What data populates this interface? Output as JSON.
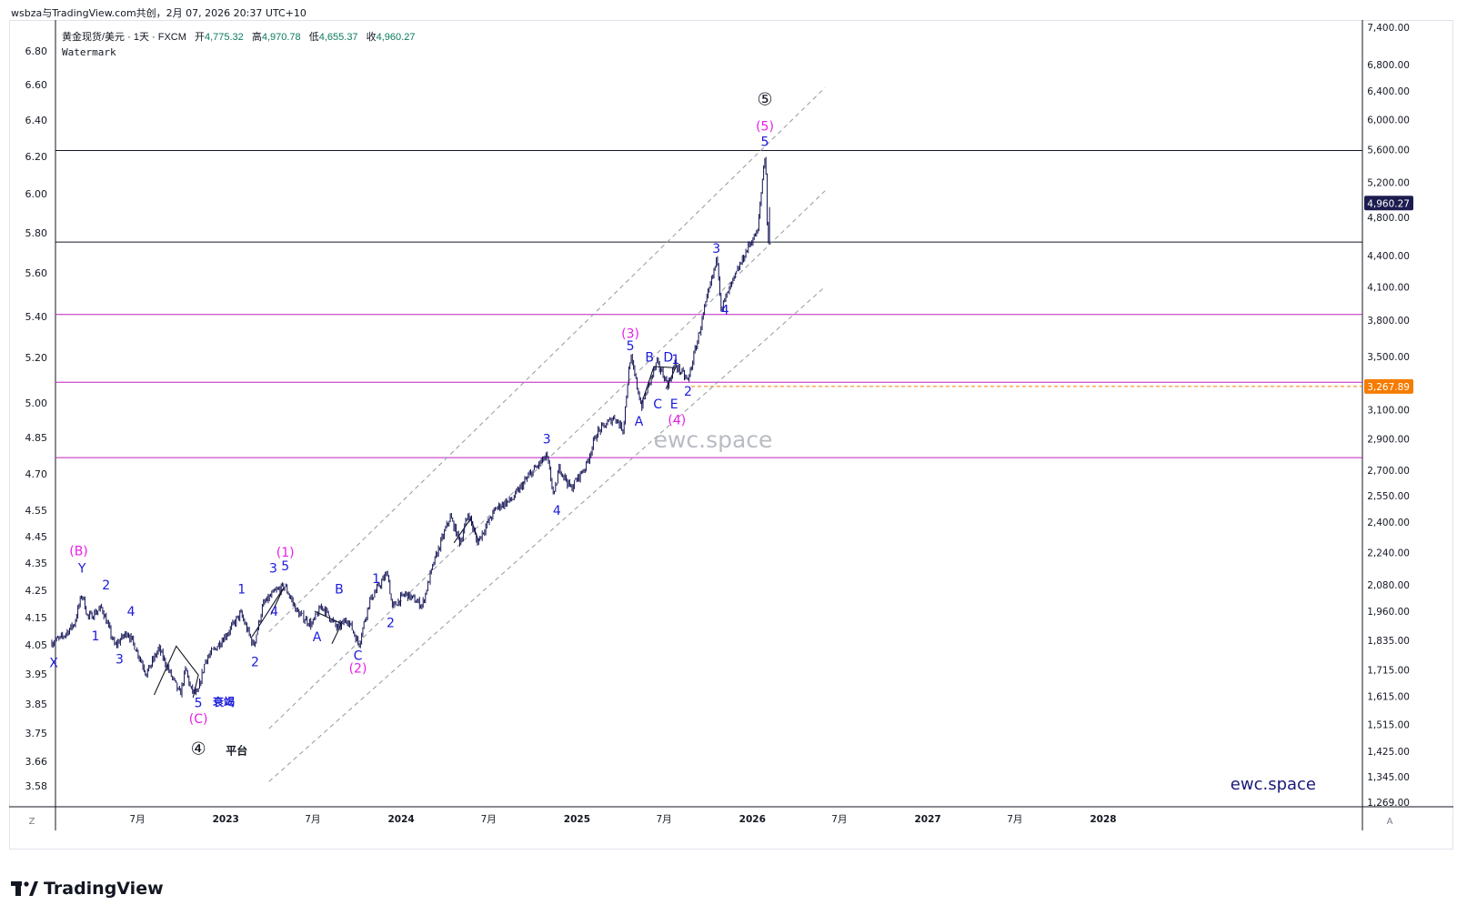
{
  "header": {
    "caption": "wsbza与TradingView.com共创，2月 07, 2026 20:37 UTC+10"
  },
  "legend": {
    "symbol": "黄金现货/美元 · 1天 · FXCM",
    "open_label": "开",
    "open": "4,775.32",
    "high_label": "高",
    "high": "4,970.78",
    "low_label": "低",
    "low": "4,655.37",
    "close_label": "收",
    "close": "4,960.27",
    "indicator": "Watermark"
  },
  "watermark": {
    "center": "ewc.space",
    "corner": "ewc.space"
  },
  "footer": {
    "brand": "TradingView"
  },
  "colors": {
    "wave_blue": "#1a1adb",
    "wave_magenta": "#e91ee9",
    "candle": "#131355",
    "hline_black": "#131722",
    "hline_magenta": "#c020c0",
    "price_tag_current": "#1c1c50",
    "price_tag_orange": "#f57c00"
  },
  "chart_data": {
    "type": "line",
    "left_axis": {
      "ticks": [
        "6.80",
        "6.60",
        "6.40",
        "6.20",
        "6.00",
        "5.80",
        "5.60",
        "5.40",
        "5.20",
        "5.00",
        "4.85",
        "4.70",
        "4.55",
        "4.45",
        "4.35",
        "4.25",
        "4.15",
        "4.05",
        "3.95",
        "3.85",
        "3.75",
        "3.66",
        "3.58"
      ]
    },
    "right_axis": {
      "scale": "log",
      "ylim": [
        1269,
        7400
      ],
      "ticks": [
        "7,400.00",
        "6,800.00",
        "6,400.00",
        "6,000.00",
        "5,600.00",
        "5,200.00",
        "4,800.00",
        "4,400.00",
        "4,100.00",
        "3,800.00",
        "3,500.00",
        "3,100.00",
        "2,900.00",
        "2,700.00",
        "2,550.00",
        "2,400.00",
        "2,240.00",
        "2,080.00",
        "1,960.00",
        "1,835.00",
        "1,715.00",
        "1,615.00",
        "1,515.00",
        "1,425.00",
        "1,345.00",
        "1,269.00"
      ]
    },
    "x_axis": {
      "ticks": [
        {
          "label": "7月",
          "x": "2022-07"
        },
        {
          "label": "2023",
          "x": "2023-01"
        },
        {
          "label": "7月",
          "x": "2023-07"
        },
        {
          "label": "2024",
          "x": "2024-01"
        },
        {
          "label": "7月",
          "x": "2024-07"
        },
        {
          "label": "2025",
          "x": "2025-01"
        },
        {
          "label": "7月",
          "x": "2025-07"
        },
        {
          "label": "2026",
          "x": "2026-01"
        },
        {
          "label": "7月",
          "x": "2026-07"
        },
        {
          "label": "2027",
          "x": "2027-01"
        },
        {
          "label": "7月",
          "x": "2027-07"
        },
        {
          "label": "2028",
          "x": "2028-01"
        }
      ]
    },
    "axis_corner_labels": {
      "left": "Z",
      "right": "A"
    },
    "series": [
      {
        "points": [
          [
            "2022-01-03",
            1825
          ],
          [
            "2022-01-25",
            1845
          ],
          [
            "2022-02-20",
            1905
          ],
          [
            "2022-03-08",
            2040
          ],
          [
            "2022-03-20",
            1930
          ],
          [
            "2022-04-18",
            1975
          ],
          [
            "2022-05-15",
            1810
          ],
          [
            "2022-06-10",
            1870
          ],
          [
            "2022-06-28",
            1800
          ],
          [
            "2022-07-20",
            1700
          ],
          [
            "2022-08-15",
            1800
          ],
          [
            "2022-09-05",
            1710
          ],
          [
            "2022-09-28",
            1620
          ],
          [
            "2022-10-10",
            1720
          ],
          [
            "2022-10-20",
            1640
          ],
          [
            "2022-11-03",
            1620
          ],
          [
            "2022-11-20",
            1755
          ],
          [
            "2022-12-10",
            1800
          ],
          [
            "2023-01-10",
            1880
          ],
          [
            "2023-02-01",
            1950
          ],
          [
            "2023-02-28",
            1810
          ],
          [
            "2023-03-20",
            1990
          ],
          [
            "2023-04-13",
            2048
          ],
          [
            "2023-05-04",
            2075
          ],
          [
            "2023-05-30",
            1955
          ],
          [
            "2023-06-29",
            1900
          ],
          [
            "2023-07-20",
            1985
          ],
          [
            "2023-08-21",
            1885
          ],
          [
            "2023-09-12",
            1925
          ],
          [
            "2023-10-05",
            1815
          ],
          [
            "2023-10-27",
            2005
          ],
          [
            "2023-12-04",
            2140
          ],
          [
            "2023-12-13",
            1975
          ],
          [
            "2024-01-10",
            2040
          ],
          [
            "2024-02-14",
            1985
          ],
          [
            "2024-03-08",
            2180
          ],
          [
            "2024-04-12",
            2430
          ],
          [
            "2024-05-03",
            2290
          ],
          [
            "2024-05-20",
            2450
          ],
          [
            "2024-06-07",
            2290
          ],
          [
            "2024-07-17",
            2480
          ],
          [
            "2024-08-20",
            2530
          ],
          [
            "2024-09-26",
            2680
          ],
          [
            "2024-10-30",
            2790
          ],
          [
            "2024-11-14",
            2540
          ],
          [
            "2024-11-25",
            2720
          ],
          [
            "2024-12-19",
            2590
          ],
          [
            "2025-01-20",
            2730
          ],
          [
            "2025-02-11",
            2940
          ],
          [
            "2025-03-20",
            3050
          ],
          [
            "2025-04-07",
            2960
          ],
          [
            "2025-04-22",
            3500
          ],
          [
            "2025-05-15",
            3120
          ],
          [
            "2025-06-16",
            3450
          ],
          [
            "2025-07-10",
            3280
          ],
          [
            "2025-07-23",
            3440
          ],
          [
            "2025-08-20",
            3310
          ],
          [
            "2025-09-10",
            3650
          ],
          [
            "2025-10-20",
            4380
          ],
          [
            "2025-10-28",
            3900
          ],
          [
            "2025-12-01",
            4250
          ],
          [
            "2025-12-26",
            4520
          ],
          [
            "2026-01-12",
            4650
          ],
          [
            "2026-01-28",
            5600
          ],
          [
            "2026-02-02",
            4400
          ],
          [
            "2026-02-06",
            4960.27
          ]
        ]
      }
    ],
    "horizontal_lines": [
      {
        "price": 5590,
        "color": "black"
      },
      {
        "price": 4540,
        "color": "black"
      },
      {
        "price": 3850,
        "color": "magenta"
      },
      {
        "price": 3300,
        "color": "magenta"
      },
      {
        "price": 2780,
        "color": "magenta"
      },
      {
        "price": 3267.89,
        "color": "orange",
        "style": "dashed"
      }
    ],
    "price_tags": [
      {
        "price": 4960.27,
        "label": "4,960.27",
        "color": "current"
      },
      {
        "price": 3267.89,
        "label": "3,267.89",
        "color": "orange"
      }
    ],
    "channel_lines": [
      {
        "from": [
          "2023-04-01",
          1870
        ],
        "to": [
          "2026-06-01",
          6450
        ]
      },
      {
        "from": [
          "2023-04-01",
          1500
        ],
        "to": [
          "2026-06-01",
          5100
        ]
      },
      {
        "from": [
          "2023-04-01",
          1330
        ],
        "to": [
          "2026-06-01",
          4100
        ]
      }
    ],
    "wave_labels": [
      {
        "text": "X",
        "x": "2022-01-08",
        "price": 1725,
        "color": "blue"
      },
      {
        "text": "(B)",
        "x": "2022-03-01",
        "price": 2225,
        "color": "magenta"
      },
      {
        "text": "Y",
        "x": "2022-03-08",
        "price": 2140,
        "color": "blue"
      },
      {
        "text": "1",
        "x": "2022-04-05",
        "price": 1835,
        "color": "blue"
      },
      {
        "text": "2",
        "x": "2022-04-27",
        "price": 2060,
        "color": "blue"
      },
      {
        "text": "3",
        "x": "2022-05-25",
        "price": 1740,
        "color": "blue"
      },
      {
        "text": "4",
        "x": "2022-06-18",
        "price": 1940,
        "color": "blue"
      },
      {
        "text": "5",
        "x": "2022-11-05",
        "price": 1575,
        "color": "blue"
      },
      {
        "text": "衰竭",
        "x": "2022-12-05",
        "price": 1580,
        "color": "blue"
      },
      {
        "text": "(C)",
        "x": "2022-11-05",
        "price": 1520,
        "color": "magenta"
      },
      {
        "text": "④",
        "x": "2022-11-05",
        "price": 1415,
        "color": "black"
      },
      {
        "text": "平台",
        "x": "2023-01-01",
        "price": 1415,
        "color": "black"
      },
      {
        "text": "1",
        "x": "2023-02-03",
        "price": 2040,
        "color": "blue"
      },
      {
        "text": "2",
        "x": "2023-03-03",
        "price": 1730,
        "color": "blue"
      },
      {
        "text": "3",
        "x": "2023-04-10",
        "price": 2140,
        "color": "blue"
      },
      {
        "text": "(1)",
        "x": "2023-05-05",
        "price": 2220,
        "color": "magenta"
      },
      {
        "text": "5",
        "x": "2023-05-05",
        "price": 2150,
        "color": "blue"
      },
      {
        "text": "4",
        "x": "2023-04-12",
        "price": 1940,
        "color": "blue"
      },
      {
        "text": "A",
        "x": "2023-07-10",
        "price": 1830,
        "color": "blue"
      },
      {
        "text": "B",
        "x": "2023-08-25",
        "price": 2040,
        "color": "blue"
      },
      {
        "text": "C",
        "x": "2023-10-03",
        "price": 1755,
        "color": "blue"
      },
      {
        "text": "(2)",
        "x": "2023-10-03",
        "price": 1705,
        "color": "magenta"
      },
      {
        "text": "1",
        "x": "2023-11-10",
        "price": 2090,
        "color": "blue"
      },
      {
        "text": "2",
        "x": "2023-12-10",
        "price": 1890,
        "color": "blue"
      },
      {
        "text": "3",
        "x": "2024-10-30",
        "price": 2870,
        "color": "blue"
      },
      {
        "text": "4",
        "x": "2024-11-20",
        "price": 2440,
        "color": "blue"
      },
      {
        "text": "(3)",
        "x": "2025-04-22",
        "price": 3650,
        "color": "magenta"
      },
      {
        "text": "5",
        "x": "2025-04-22",
        "price": 3550,
        "color": "blue"
      },
      {
        "text": "A",
        "x": "2025-05-10",
        "price": 2990,
        "color": "blue"
      },
      {
        "text": "B",
        "x": "2025-06-01",
        "price": 3460,
        "color": "blue"
      },
      {
        "text": "C",
        "x": "2025-06-18",
        "price": 3110,
        "color": "blue"
      },
      {
        "text": "D",
        "x": "2025-07-10",
        "price": 3460,
        "color": "blue"
      },
      {
        "text": "1",
        "x": "2025-07-25",
        "price": 3440,
        "color": "blue"
      },
      {
        "text": "E",
        "x": "2025-07-22",
        "price": 3110,
        "color": "blue"
      },
      {
        "text": "(4)",
        "x": "2025-07-28",
        "price": 3000,
        "color": "magenta"
      },
      {
        "text": "2",
        "x": "2025-08-20",
        "price": 3200,
        "color": "blue"
      },
      {
        "text": "3",
        "x": "2025-10-18",
        "price": 4430,
        "color": "blue"
      },
      {
        "text": "4",
        "x": "2025-11-05",
        "price": 3850,
        "color": "blue"
      },
      {
        "text": "⑤",
        "x": "2026-01-27",
        "price": 6200,
        "color": "black"
      },
      {
        "text": "(5)",
        "x": "2026-01-27",
        "price": 5850,
        "color": "magenta"
      },
      {
        "text": "5",
        "x": "2026-01-27",
        "price": 5650,
        "color": "blue"
      }
    ]
  }
}
